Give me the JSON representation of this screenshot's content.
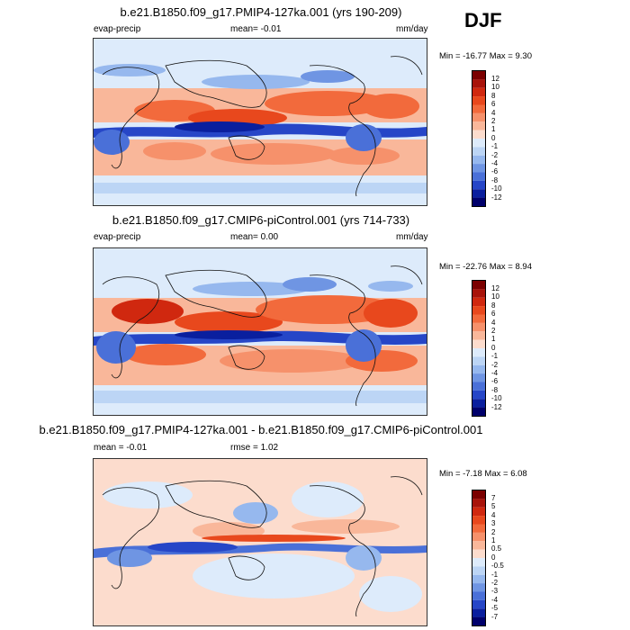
{
  "season": "DJF",
  "panels": [
    {
      "title": "b.e21.B1850.f09_g17.PMIP4-127ka.001 (yrs 190-209)",
      "left_label": "evap-precip",
      "center_label": "mean=  -0.01",
      "right_label": "mm/day",
      "minmax": "Min = -16.77 Max =   9.30",
      "cb_labels": [
        "12",
        "10",
        "8",
        "6",
        "4",
        "2",
        "1",
        "0",
        "-1",
        "-2",
        "-4",
        "-6",
        "-8",
        "-10",
        "-12"
      ]
    },
    {
      "title": "b.e21.B1850.f09_g17.CMIP6-piControl.001 (yrs 714-733)",
      "left_label": "evap-precip",
      "center_label": "mean=   0.00",
      "right_label": "mm/day",
      "minmax": "Min = -22.76 Max =   8.94",
      "cb_labels": [
        "12",
        "10",
        "8",
        "6",
        "4",
        "2",
        "1",
        "0",
        "-1",
        "-2",
        "-4",
        "-6",
        "-8",
        "-10",
        "-12"
      ]
    },
    {
      "title": "b.e21.B1850.f09_g17.PMIP4-127ka.001 - b.e21.B1850.f09_g17.CMIP6-piControl.001",
      "left_label": "mean =  -0.01",
      "center_label": "rmse =   1.02",
      "right_label": "",
      "minmax": "Min =  -7.18 Max =   6.08",
      "cb_labels": [
        "7",
        "5",
        "4",
        "3",
        "2",
        "1",
        "0.5",
        "0",
        "-0.5",
        "-1",
        "-2",
        "-3",
        "-4",
        "-5",
        "-7"
      ]
    }
  ],
  "colors": {
    "scale": [
      "#7b0000",
      "#a8130a",
      "#d0280f",
      "#e8481d",
      "#f26a3c",
      "#f6916b",
      "#f9b79a",
      "#fcdccd",
      "#ddebfb",
      "#bcd5f5",
      "#96b8ee",
      "#6f95e3",
      "#4a70d8",
      "#2646c7",
      "#0a1f9e",
      "#00006b"
    ]
  }
}
